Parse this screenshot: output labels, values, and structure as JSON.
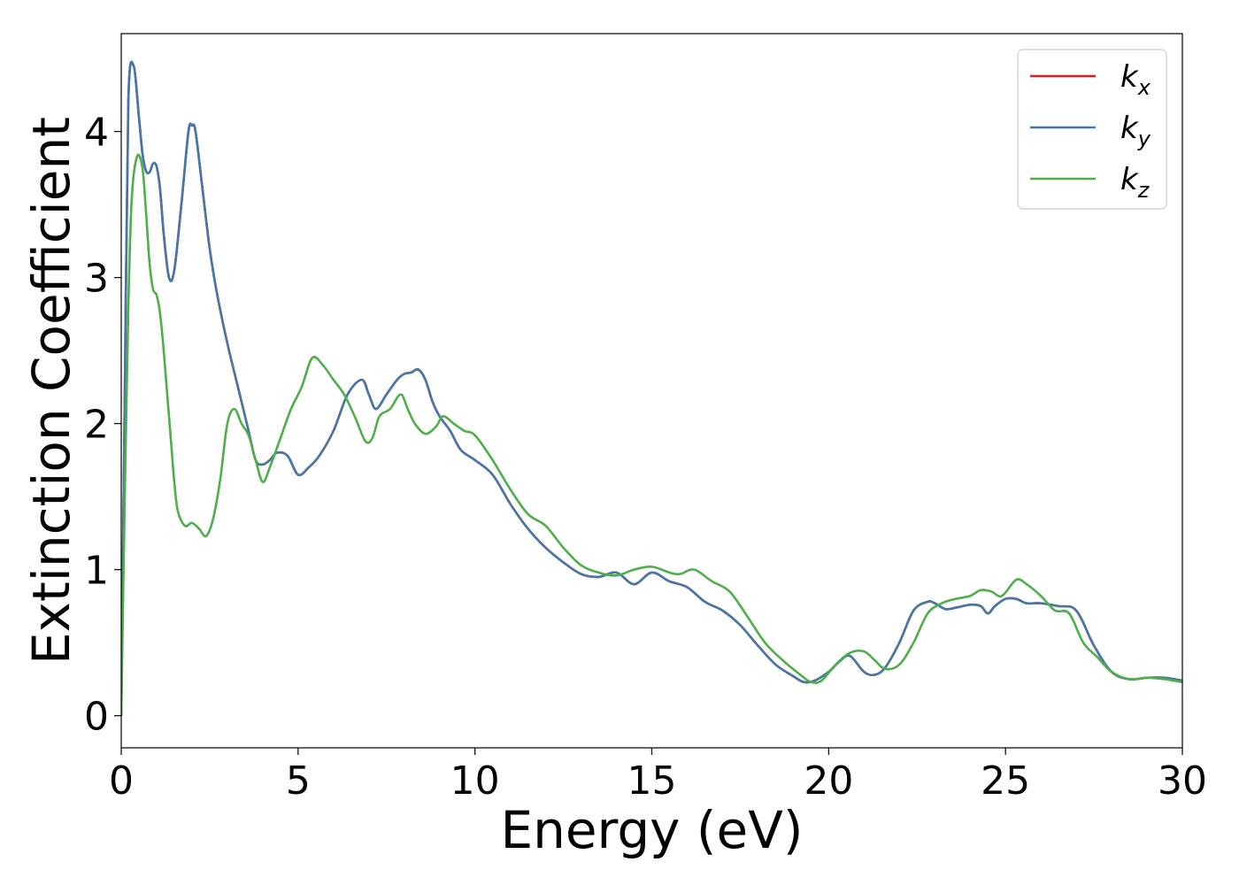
{
  "chart_data": {
    "type": "line",
    "title": "",
    "xlabel": "Energy (eV)",
    "ylabel": "Extinction Coefficient",
    "xlim": [
      0,
      30
    ],
    "ylim": [
      -0.22,
      4.67
    ],
    "xticks": [
      0,
      5,
      10,
      15,
      20,
      25,
      30
    ],
    "yticks": [
      0,
      1,
      2,
      3,
      4
    ],
    "grid": false,
    "legend_position": "top-right",
    "series": [
      {
        "name": "k",
        "subscript": "x",
        "color": "#e41a1c",
        "x": [
          0,
          0.1,
          0.2,
          0.35,
          0.5,
          0.6,
          0.7,
          0.8,
          0.9,
          1.0,
          1.1,
          1.2,
          1.35,
          1.5,
          1.7,
          1.9,
          2.0,
          2.1,
          2.3,
          2.5,
          2.7,
          3.0,
          3.3,
          3.6,
          3.8,
          4.0,
          4.2,
          4.4,
          4.7,
          5.0,
          5.3,
          5.6,
          6.0,
          6.4,
          6.8,
          7.0,
          7.2,
          7.5,
          7.8,
          8.0,
          8.2,
          8.4,
          8.6,
          8.8,
          9.0,
          9.3,
          9.6,
          10.0,
          10.5,
          11.0,
          11.5,
          12.0,
          12.5,
          13.0,
          13.5,
          14.0,
          14.5,
          15.0,
          15.5,
          16.0,
          16.5,
          17.0,
          17.5,
          18.0,
          18.5,
          19.0,
          19.3,
          19.6,
          20.0,
          20.3,
          20.6,
          21.0,
          21.3,
          21.6,
          22.0,
          22.4,
          22.8,
          23.0,
          23.3,
          23.6,
          24.0,
          24.3,
          24.5,
          24.7,
          25.0,
          25.3,
          25.6,
          26.0,
          26.5,
          27.0,
          27.5,
          28.0,
          28.5,
          29.0,
          29.5,
          30.0
        ],
        "y": [
          0,
          2.2,
          4.2,
          4.45,
          4.1,
          3.85,
          3.73,
          3.72,
          3.78,
          3.76,
          3.6,
          3.3,
          3.0,
          3.05,
          3.5,
          4.0,
          4.04,
          4.0,
          3.6,
          3.2,
          2.9,
          2.55,
          2.25,
          1.95,
          1.75,
          1.72,
          1.75,
          1.8,
          1.78,
          1.65,
          1.7,
          1.78,
          1.95,
          2.2,
          2.3,
          2.2,
          2.1,
          2.2,
          2.3,
          2.34,
          2.35,
          2.37,
          2.3,
          2.15,
          2.05,
          1.95,
          1.82,
          1.75,
          1.65,
          1.45,
          1.28,
          1.15,
          1.05,
          0.97,
          0.95,
          0.98,
          0.9,
          0.98,
          0.92,
          0.88,
          0.78,
          0.72,
          0.62,
          0.48,
          0.35,
          0.27,
          0.23,
          0.24,
          0.3,
          0.37,
          0.41,
          0.3,
          0.28,
          0.33,
          0.5,
          0.72,
          0.78,
          0.77,
          0.73,
          0.74,
          0.76,
          0.75,
          0.7,
          0.75,
          0.8,
          0.8,
          0.77,
          0.77,
          0.75,
          0.72,
          0.48,
          0.3,
          0.25,
          0.26,
          0.26,
          0.24
        ]
      },
      {
        "name": "k",
        "subscript": "y",
        "color": "#4477aa",
        "x": [
          0,
          0.1,
          0.2,
          0.35,
          0.5,
          0.6,
          0.7,
          0.8,
          0.9,
          1.0,
          1.1,
          1.2,
          1.35,
          1.5,
          1.7,
          1.9,
          2.0,
          2.1,
          2.3,
          2.5,
          2.7,
          3.0,
          3.3,
          3.6,
          3.8,
          4.0,
          4.2,
          4.4,
          4.7,
          5.0,
          5.3,
          5.6,
          6.0,
          6.4,
          6.8,
          7.0,
          7.2,
          7.5,
          7.8,
          8.0,
          8.2,
          8.4,
          8.6,
          8.8,
          9.0,
          9.3,
          9.6,
          10.0,
          10.5,
          11.0,
          11.5,
          12.0,
          12.5,
          13.0,
          13.5,
          14.0,
          14.5,
          15.0,
          15.5,
          16.0,
          16.5,
          17.0,
          17.5,
          18.0,
          18.5,
          19.0,
          19.3,
          19.6,
          20.0,
          20.3,
          20.6,
          21.0,
          21.3,
          21.6,
          22.0,
          22.4,
          22.8,
          23.0,
          23.3,
          23.6,
          24.0,
          24.3,
          24.5,
          24.7,
          25.0,
          25.3,
          25.6,
          26.0,
          26.5,
          27.0,
          27.5,
          28.0,
          28.5,
          29.0,
          29.5,
          30.0
        ],
        "y": [
          0,
          2.2,
          4.2,
          4.45,
          4.1,
          3.85,
          3.73,
          3.72,
          3.78,
          3.76,
          3.6,
          3.3,
          3.0,
          3.05,
          3.5,
          4.0,
          4.04,
          4.0,
          3.6,
          3.2,
          2.9,
          2.55,
          2.25,
          1.95,
          1.75,
          1.72,
          1.75,
          1.8,
          1.78,
          1.65,
          1.7,
          1.78,
          1.95,
          2.2,
          2.3,
          2.2,
          2.1,
          2.2,
          2.3,
          2.34,
          2.35,
          2.37,
          2.3,
          2.15,
          2.05,
          1.95,
          1.82,
          1.75,
          1.65,
          1.45,
          1.28,
          1.15,
          1.05,
          0.97,
          0.95,
          0.98,
          0.9,
          0.98,
          0.92,
          0.88,
          0.78,
          0.72,
          0.62,
          0.48,
          0.35,
          0.27,
          0.23,
          0.24,
          0.3,
          0.37,
          0.41,
          0.3,
          0.28,
          0.33,
          0.5,
          0.72,
          0.78,
          0.77,
          0.73,
          0.74,
          0.76,
          0.75,
          0.7,
          0.75,
          0.8,
          0.8,
          0.77,
          0.77,
          0.75,
          0.72,
          0.48,
          0.3,
          0.25,
          0.26,
          0.26,
          0.24
        ]
      },
      {
        "name": "k",
        "subscript": "z",
        "color": "#4daf4a",
        "x": [
          0,
          0.1,
          0.2,
          0.3,
          0.45,
          0.6,
          0.7,
          0.8,
          0.9,
          1.0,
          1.1,
          1.2,
          1.3,
          1.4,
          1.5,
          1.6,
          1.8,
          2.0,
          2.2,
          2.4,
          2.6,
          2.8,
          3.0,
          3.2,
          3.4,
          3.6,
          3.8,
          4.0,
          4.2,
          4.5,
          4.8,
          5.1,
          5.4,
          5.7,
          6.0,
          6.3,
          6.6,
          6.9,
          7.1,
          7.3,
          7.6,
          7.9,
          8.1,
          8.3,
          8.6,
          8.9,
          9.1,
          9.4,
          9.7,
          10.0,
          10.5,
          11.0,
          11.5,
          12.0,
          12.5,
          13.0,
          13.5,
          14.0,
          14.5,
          15.0,
          15.5,
          15.8,
          16.2,
          16.7,
          17.2,
          17.7,
          18.2,
          18.7,
          19.2,
          19.5,
          19.8,
          20.2,
          20.6,
          21.0,
          21.3,
          21.6,
          22.0,
          22.4,
          22.8,
          23.2,
          23.6,
          24.0,
          24.3,
          24.6,
          24.9,
          25.3,
          25.6,
          26.0,
          26.4,
          26.8,
          27.2,
          27.6,
          28.0,
          28.5,
          29.0,
          29.5,
          30.0
        ],
        "y": [
          0,
          1.5,
          2.8,
          3.55,
          3.83,
          3.75,
          3.45,
          3.1,
          2.92,
          2.88,
          2.75,
          2.5,
          2.2,
          1.9,
          1.6,
          1.4,
          1.3,
          1.32,
          1.28,
          1.23,
          1.35,
          1.62,
          2.0,
          2.1,
          2.0,
          1.92,
          1.75,
          1.6,
          1.7,
          1.9,
          2.1,
          2.25,
          2.45,
          2.4,
          2.3,
          2.2,
          2.05,
          1.88,
          1.9,
          2.05,
          2.1,
          2.2,
          2.1,
          2.0,
          1.93,
          1.98,
          2.05,
          2.0,
          1.95,
          1.92,
          1.75,
          1.55,
          1.38,
          1.3,
          1.15,
          1.03,
          0.98,
          0.96,
          1.0,
          1.02,
          0.98,
          0.97,
          1.0,
          0.92,
          0.85,
          0.68,
          0.5,
          0.38,
          0.28,
          0.23,
          0.24,
          0.35,
          0.43,
          0.44,
          0.38,
          0.32,
          0.35,
          0.5,
          0.7,
          0.77,
          0.8,
          0.82,
          0.86,
          0.85,
          0.82,
          0.93,
          0.9,
          0.82,
          0.72,
          0.7,
          0.5,
          0.4,
          0.3,
          0.25,
          0.26,
          0.25,
          0.23
        ]
      }
    ]
  }
}
